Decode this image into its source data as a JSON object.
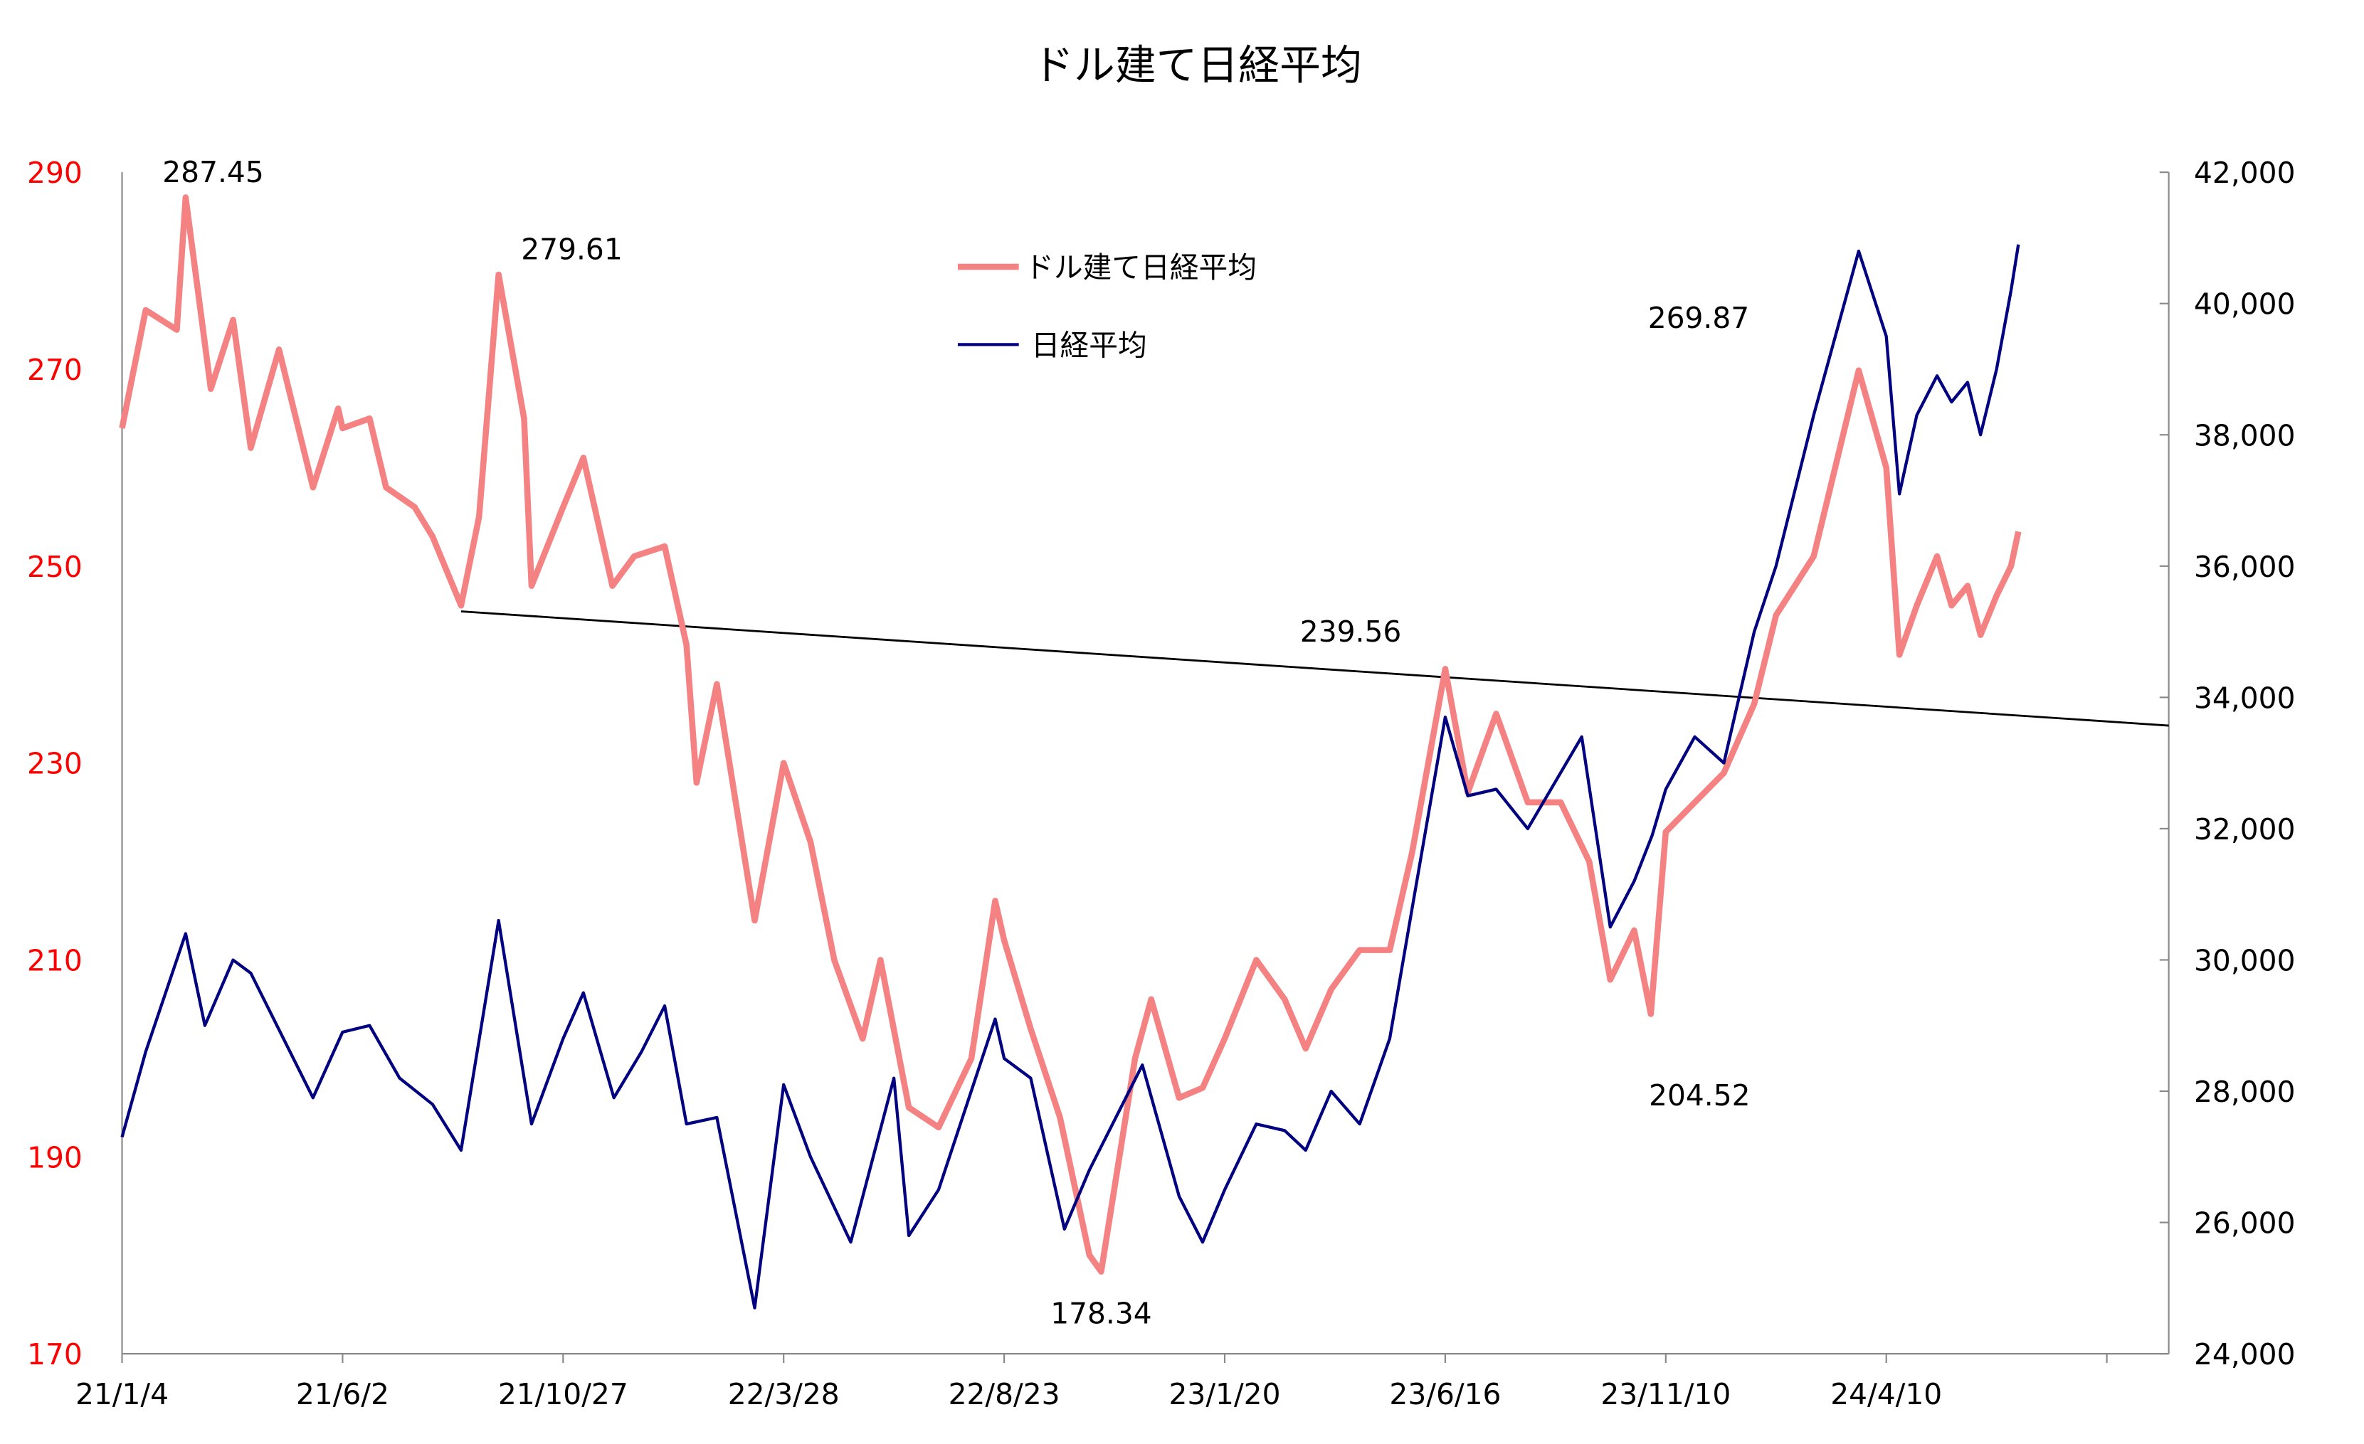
{
  "chart_data": {
    "type": "line",
    "title": "ドル建て日経平均",
    "x_tick_labels": [
      "21/1/4",
      "21/6/2",
      "21/10/27",
      "22/3/28",
      "22/8/23",
      "23/1/20",
      "23/6/16",
      "23/11/10",
      "24/4/10",
      ""
    ],
    "left_axis": {
      "ticks": [
        "290",
        "270",
        "250",
        "230",
        "210",
        "190",
        "170"
      ],
      "range": [
        170,
        290
      ],
      "color": "#FF0000"
    },
    "right_axis": {
      "ticks": [
        "42,000",
        "40,000",
        "38,000",
        "36,000",
        "34,000",
        "32,000",
        "30,000",
        "28,000",
        "26,000",
        "24,000"
      ],
      "range": [
        24000,
        42000
      ]
    },
    "grid": false,
    "legend_placement": "top-center",
    "series": [
      {
        "name": "ドル建て日経平均",
        "axis": "left",
        "color": "#F48282",
        "points": [
          [
            "2021-01-04",
            264
          ],
          [
            "2021-01-20",
            276
          ],
          [
            "2021-02-10",
            274
          ],
          [
            "2021-02-16",
            287.45
          ],
          [
            "2021-03-05",
            268
          ],
          [
            "2021-03-20",
            275
          ],
          [
            "2021-04-01",
            262
          ],
          [
            "2021-04-20",
            272
          ],
          [
            "2021-05-13",
            258
          ],
          [
            "2021-05-30",
            266
          ],
          [
            "2021-06-02",
            264
          ],
          [
            "2021-06-20",
            265
          ],
          [
            "2021-07-01",
            258
          ],
          [
            "2021-07-20",
            256
          ],
          [
            "2021-08-01",
            253
          ],
          [
            "2021-08-20",
            246
          ],
          [
            "2021-09-01",
            255
          ],
          [
            "2021-09-14",
            279.61
          ],
          [
            "2021-10-01",
            265
          ],
          [
            "2021-10-06",
            248
          ],
          [
            "2021-10-27",
            256
          ],
          [
            "2021-11-10",
            261
          ],
          [
            "2021-11-30",
            248
          ],
          [
            "2021-12-15",
            251
          ],
          [
            "2022-01-05",
            252
          ],
          [
            "2022-01-20",
            242
          ],
          [
            "2022-01-27",
            228
          ],
          [
            "2022-02-10",
            238
          ],
          [
            "2022-03-08",
            214
          ],
          [
            "2022-03-28",
            230
          ],
          [
            "2022-04-15",
            222
          ],
          [
            "2022-05-01",
            210
          ],
          [
            "2022-05-20",
            202
          ],
          [
            "2022-06-01",
            210
          ],
          [
            "2022-06-20",
            195
          ],
          [
            "2022-07-10",
            193
          ],
          [
            "2022-08-01",
            200
          ],
          [
            "2022-08-17",
            216
          ],
          [
            "2022-08-23",
            212
          ],
          [
            "2022-09-10",
            203
          ],
          [
            "2022-09-30",
            194
          ],
          [
            "2022-10-20",
            180
          ],
          [
            "2022-10-28",
            178.34
          ],
          [
            "2022-11-20",
            200
          ],
          [
            "2022-12-01",
            206
          ],
          [
            "2022-12-20",
            196
          ],
          [
            "2023-01-05",
            197
          ],
          [
            "2023-01-20",
            202
          ],
          [
            "2023-02-10",
            210
          ],
          [
            "2023-03-01",
            206
          ],
          [
            "2023-03-15",
            201
          ],
          [
            "2023-04-01",
            207
          ],
          [
            "2023-04-20",
            211
          ],
          [
            "2023-05-10",
            211
          ],
          [
            "2023-05-25",
            221
          ],
          [
            "2023-06-16",
            239.56
          ],
          [
            "2023-07-01",
            227
          ],
          [
            "2023-07-20",
            235
          ],
          [
            "2023-08-10",
            226
          ],
          [
            "2023-09-01",
            226
          ],
          [
            "2023-09-20",
            220
          ],
          [
            "2023-10-04",
            208
          ],
          [
            "2023-10-20",
            213
          ],
          [
            "2023-10-31",
            204.52
          ],
          [
            "2023-11-10",
            223
          ],
          [
            "2023-11-30",
            226
          ],
          [
            "2023-12-20",
            229
          ],
          [
            "2024-01-10",
            236
          ],
          [
            "2024-01-25",
            245
          ],
          [
            "2024-02-20",
            251
          ],
          [
            "2024-03-22",
            269.87
          ],
          [
            "2024-04-10",
            260
          ],
          [
            "2024-04-19",
            241
          ],
          [
            "2024-05-01",
            246
          ],
          [
            "2024-05-15",
            251
          ],
          [
            "2024-05-25",
            246
          ],
          [
            "2024-06-05",
            248
          ],
          [
            "2024-06-14",
            243
          ],
          [
            "2024-06-25",
            247
          ],
          [
            "2024-07-05",
            250
          ],
          [
            "2024-07-10",
            253.5
          ]
        ]
      },
      {
        "name": "日経平均",
        "axis": "right",
        "color": "#000080",
        "points": [
          [
            "2021-01-04",
            27300
          ],
          [
            "2021-01-20",
            28600
          ],
          [
            "2021-02-16",
            30400
          ],
          [
            "2021-03-01",
            29000
          ],
          [
            "2021-03-20",
            30000
          ],
          [
            "2021-04-01",
            29800
          ],
          [
            "2021-05-13",
            27900
          ],
          [
            "2021-06-02",
            28900
          ],
          [
            "2021-06-20",
            29000
          ],
          [
            "2021-07-10",
            28200
          ],
          [
            "2021-08-01",
            27800
          ],
          [
            "2021-08-20",
            27100
          ],
          [
            "2021-09-14",
            30600
          ],
          [
            "2021-10-06",
            27500
          ],
          [
            "2021-10-27",
            28800
          ],
          [
            "2021-11-10",
            29500
          ],
          [
            "2021-12-01",
            27900
          ],
          [
            "2021-12-20",
            28600
          ],
          [
            "2022-01-05",
            29300
          ],
          [
            "2022-01-20",
            27500
          ],
          [
            "2022-02-10",
            27600
          ],
          [
            "2022-03-08",
            24700
          ],
          [
            "2022-03-28",
            28100
          ],
          [
            "2022-04-15",
            27000
          ],
          [
            "2022-05-12",
            25700
          ],
          [
            "2022-06-10",
            28200
          ],
          [
            "2022-06-20",
            25800
          ],
          [
            "2022-07-10",
            26500
          ],
          [
            "2022-08-17",
            29100
          ],
          [
            "2022-08-23",
            28500
          ],
          [
            "2022-09-10",
            28200
          ],
          [
            "2022-10-03",
            25900
          ],
          [
            "2022-10-20",
            26800
          ],
          [
            "2022-11-25",
            28400
          ],
          [
            "2022-12-20",
            26400
          ],
          [
            "2023-01-05",
            25700
          ],
          [
            "2023-01-20",
            26500
          ],
          [
            "2023-02-10",
            27500
          ],
          [
            "2023-03-01",
            27400
          ],
          [
            "2023-03-15",
            27100
          ],
          [
            "2023-04-01",
            28000
          ],
          [
            "2023-04-20",
            27500
          ],
          [
            "2023-05-10",
            28800
          ],
          [
            "2023-05-25",
            30800
          ],
          [
            "2023-06-16",
            33700
          ],
          [
            "2023-07-01",
            32500
          ],
          [
            "2023-07-20",
            32600
          ],
          [
            "2023-08-10",
            32000
          ],
          [
            "2023-09-15",
            33400
          ],
          [
            "2023-10-04",
            30500
          ],
          [
            "2023-10-20",
            31200
          ],
          [
            "2023-11-01",
            31900
          ],
          [
            "2023-11-10",
            32600
          ],
          [
            "2023-11-30",
            33400
          ],
          [
            "2023-12-20",
            33000
          ],
          [
            "2024-01-10",
            35000
          ],
          [
            "2024-01-25",
            36000
          ],
          [
            "2024-02-20",
            38300
          ],
          [
            "2024-03-22",
            40800
          ],
          [
            "2024-04-10",
            39500
          ],
          [
            "2024-04-19",
            37100
          ],
          [
            "2024-05-01",
            38300
          ],
          [
            "2024-05-15",
            38900
          ],
          [
            "2024-05-25",
            38500
          ],
          [
            "2024-06-05",
            38800
          ],
          [
            "2024-06-14",
            38000
          ],
          [
            "2024-06-25",
            39000
          ],
          [
            "2024-07-05",
            40200
          ],
          [
            "2024-07-10",
            40900
          ]
        ]
      }
    ],
    "trendline": {
      "axis": "left",
      "color": "#000000",
      "from": [
        "2021-08-20",
        245.4
      ],
      "to": [
        "2024-10-01",
        233.8
      ]
    },
    "annotations": [
      {
        "text": "287.45",
        "date": "2021-02-16",
        "value": 287.45
      },
      {
        "text": "279.61",
        "date": "2021-09-14",
        "value": 279.61
      },
      {
        "text": "178.34",
        "date": "2022-10-28",
        "value": 178.34
      },
      {
        "text": "239.56",
        "date": "2023-06-16",
        "value": 239.56
      },
      {
        "text": "204.52",
        "date": "2023-10-31",
        "value": 204.52
      },
      {
        "text": "269.87",
        "date": "2024-03-22",
        "value": 269.87
      }
    ]
  }
}
